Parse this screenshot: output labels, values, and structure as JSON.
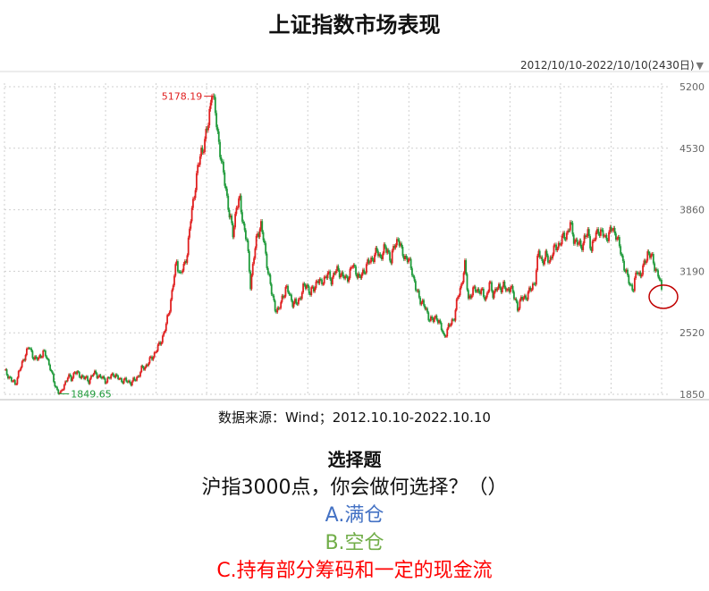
{
  "title": "上证指数市场表现",
  "range_selector": {
    "label": "2012/10/10-2022/10/10(2430日)",
    "arrow": "▼"
  },
  "source": "数据来源：Wind；2012.10.10-2022.10.10",
  "question": {
    "heading": "选择题",
    "text": "沪指3000点，你会做何选择？（）",
    "option_a": "A.满仓",
    "option_b": "B.空仓",
    "option_c": "C.持有部分筹码和一定的现金流"
  },
  "colors": {
    "up": "#e02020",
    "down": "#1f9a3a",
    "grid": "#cfcfcf",
    "marker": "#c00000"
  },
  "chart_data": {
    "type": "line",
    "ylim": [
      1850,
      5200
    ],
    "yticks": [
      5200,
      4530,
      3860,
      3190,
      2520,
      1850
    ],
    "grid": true,
    "annotations": {
      "high": "5178.19",
      "low": "1849.65"
    },
    "series": [
      {
        "values": [
          2100,
          2060,
          2000,
          1960,
          2080,
          2180,
          2300,
          2360,
          2280,
          2220,
          2260,
          2310,
          2250,
          2150,
          1980,
          1900,
          1849.65,
          1960,
          2040,
          2020,
          2100,
          2060,
          2050,
          2020,
          2000,
          2060,
          2080,
          2040,
          2020,
          2000,
          2030,
          2080,
          2030,
          2010,
          2000,
          1990,
          1980,
          2000,
          2050,
          2120,
          2150,
          2200,
          2250,
          2320,
          2380,
          2480,
          2600,
          2800,
          3050,
          3300,
          3150,
          3230,
          3400,
          3750,
          4050,
          4300,
          4500,
          4600,
          4800,
          5178.19,
          4900,
          4600,
          4300,
          4100,
          3800,
          3600,
          3900,
          3950,
          3700,
          3500,
          3050,
          3350,
          3600,
          3700,
          3450,
          3200,
          2950,
          2800,
          2750,
          2900,
          3000,
          2950,
          2850,
          2830,
          2900,
          3000,
          3050,
          2950,
          3000,
          3100,
          3050,
          3120,
          3150,
          3100,
          3180,
          3200,
          3150,
          3100,
          3150,
          3250,
          3200,
          3100,
          3180,
          3250,
          3300,
          3350,
          3400,
          3350,
          3420,
          3430,
          3300,
          3480,
          3550,
          3400,
          3350,
          3300,
          3200,
          3000,
          2900,
          2850,
          2750,
          2680,
          2650,
          2700,
          2600,
          2480,
          2550,
          2620,
          2700,
          2900,
          3050,
          3250,
          2900,
          2950,
          3000,
          2980,
          2950,
          2900,
          3050,
          2950,
          3000,
          3000,
          3050,
          2950,
          3050,
          2900,
          2800,
          2880,
          2900,
          2950,
          3000,
          3100,
          3400,
          3300,
          3350,
          3300,
          3400,
          3450,
          3500,
          3550,
          3600,
          3700,
          3550,
          3500,
          3450,
          3550,
          3600,
          3450,
          3550,
          3650,
          3600,
          3550,
          3600,
          3650,
          3600,
          3450,
          3300,
          3150,
          3050,
          3000,
          3200,
          3150,
          3250,
          3400,
          3350,
          3250,
          3150,
          2990
        ]
      }
    ]
  }
}
